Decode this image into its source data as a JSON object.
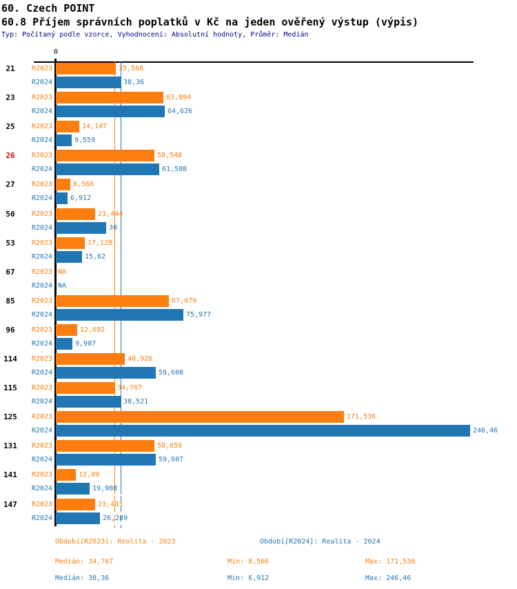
{
  "header": {
    "title": "60. Czech POINT",
    "subtitle": "60.8 Příjem správních poplatků v Kč na jeden ověřený výstup (výpis)",
    "meta": "Typ: Počítaný podle vzorce, Vyhodnocení: Absolutní hodnoty, Průměr: Medián"
  },
  "colors": {
    "r2023": "#fd7e0e",
    "r2024": "#2176b4",
    "highlight_category": "#e60000",
    "meta_text": "#00008b",
    "axis": "#000000"
  },
  "axis": {
    "zero_label": "0"
  },
  "chart_data": {
    "type": "bar",
    "orientation": "horizontal",
    "title": "60.8 Příjem správních poplatků v Kč na jeden ověřený výstup (výpis)",
    "categories": [
      "21",
      "23",
      "25",
      "26",
      "27",
      "50",
      "53",
      "67",
      "85",
      "96",
      "114",
      "115",
      "125",
      "131",
      "141",
      "147"
    ],
    "highlighted_category": "26",
    "na_text": "NA",
    "xlim": [
      0,
      268
    ],
    "series": [
      {
        "name": "R2023",
        "color": "#fd7e0e",
        "median": 34.767,
        "values": [
          35.568,
          63.894,
          14.147,
          58.548,
          8.566,
          23.444,
          17.128,
          null,
          67.079,
          12.692,
          40.926,
          34.767,
          171.536,
          58.659,
          12.09,
          23.483
        ],
        "value_labels": [
          "35,568",
          "63,894",
          "14,147",
          "58,548",
          "8,566",
          "23,444",
          "17,128",
          "NA",
          "67,079",
          "12,692",
          "40,926",
          "34,767",
          "171,536",
          "58,659",
          "12,09",
          "23,483"
        ]
      },
      {
        "name": "R2024",
        "color": "#2176b4",
        "median": 38.36,
        "values": [
          38.36,
          64.626,
          9.559,
          61.588,
          6.912,
          30,
          15.62,
          null,
          75.977,
          9.987,
          59.608,
          38.521,
          246.46,
          59.607,
          19.908,
          26.289
        ],
        "value_labels": [
          "38,36",
          "64,626",
          "9,559",
          "61,588",
          "6,912",
          "30",
          "15,62",
          "NA",
          "75,977",
          "9,987",
          "59,608",
          "38,521",
          "246,46",
          "59,607",
          "19,908",
          "26,289"
        ]
      }
    ],
    "median_lines": [
      {
        "series": "R2023",
        "value": 34.767
      },
      {
        "series": "R2024",
        "value": 38.36
      }
    ]
  },
  "legend": {
    "r2023": "Období[R2023]: Realita - 2023",
    "r2024": "Období[R2024]: Realita - 2024"
  },
  "stats": {
    "r2023": {
      "median": "Medián: 34,767",
      "min": "Min: 8,566",
      "max": "Max: 171,536"
    },
    "r2024": {
      "median": "Medián: 38,36",
      "min": "Min: 6,912",
      "max": "Max: 246,46"
    }
  }
}
